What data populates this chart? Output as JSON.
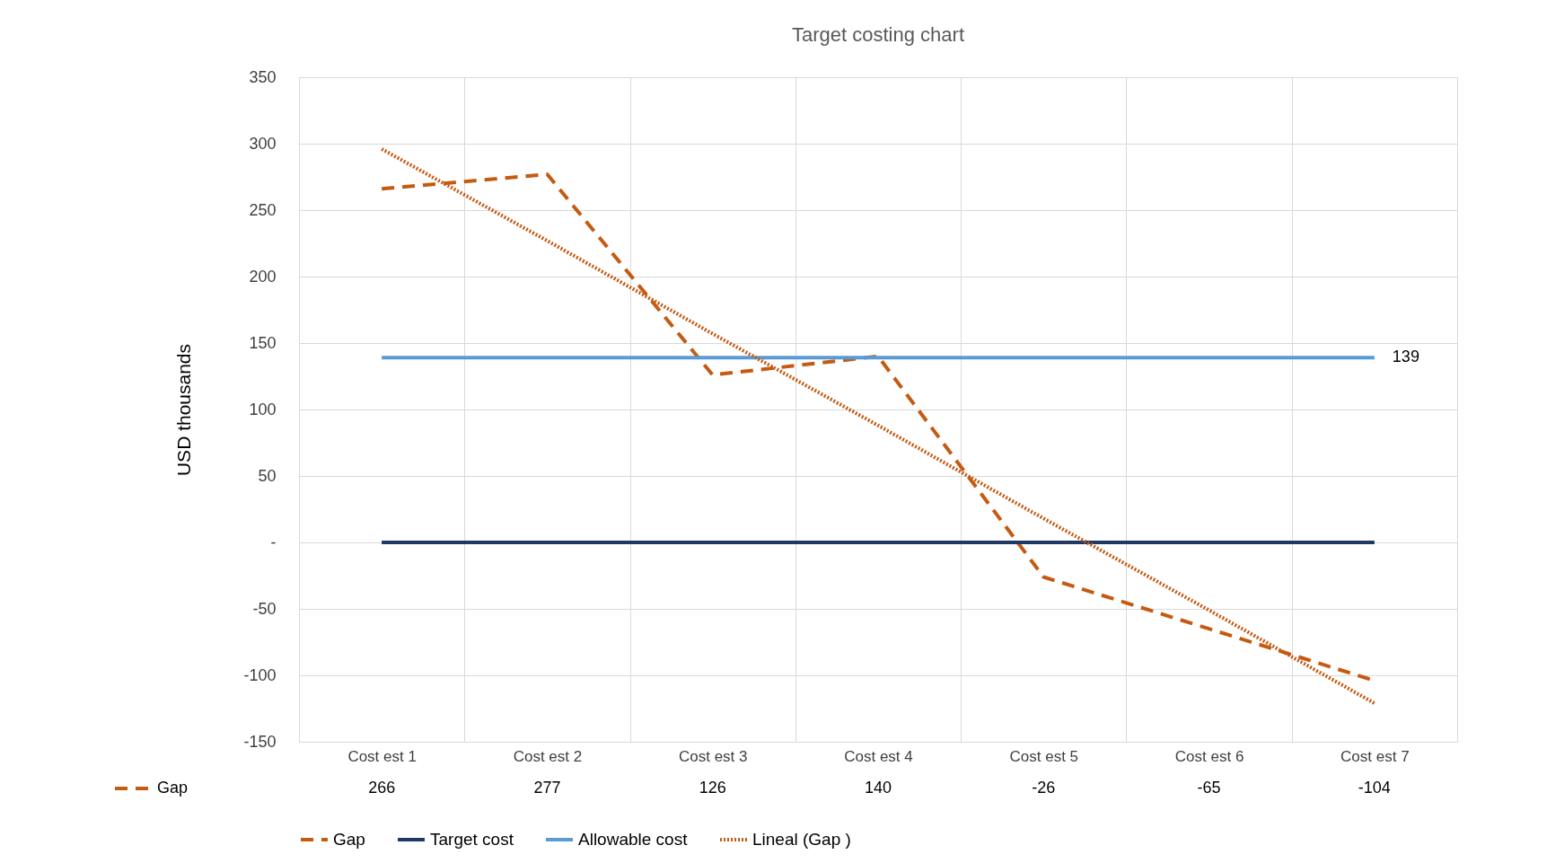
{
  "chart_data": {
    "type": "line",
    "title": "Target costing chart",
    "ylabel": "USD thousands",
    "categories": [
      "Cost est 1",
      "Cost est 2",
      "Cost est 3",
      "Cost est 4",
      "Cost est 5",
      "Cost est 6",
      "Cost est 7"
    ],
    "series": [
      {
        "name": "Gap",
        "color": "#c55a11",
        "line_style": "dashed",
        "values": [
          266,
          277,
          126,
          140,
          -26,
          -65,
          -104
        ],
        "value_labels": [
          "266",
          "277",
          "126",
          "140",
          "-26",
          "-65",
          "-104"
        ]
      },
      {
        "name": "Target cost",
        "color": "#1f3864",
        "line_style": "solid",
        "values": [
          0,
          0,
          0,
          0,
          0,
          0,
          0
        ]
      },
      {
        "name": "Allowable cost",
        "color": "#5b9bd5",
        "line_style": "solid",
        "values": [
          139,
          139,
          139,
          139,
          139,
          139,
          139
        ],
        "value_labels": [
          null,
          null,
          null,
          null,
          null,
          null,
          "139"
        ]
      },
      {
        "name": "Lineal (Gap )",
        "color": "#c55a11",
        "line_style": "dotted",
        "values": [
          296,
          227,
          157,
          88,
          18,
          -51,
          -121
        ]
      }
    ],
    "ylim": [
      -150,
      350
    ],
    "yticks": [
      -150,
      -100,
      -50,
      {
        "value": 0,
        "label": "-"
      },
      50,
      100,
      150,
      200,
      250,
      300,
      350
    ],
    "grid": true,
    "legend": "bottom"
  }
}
